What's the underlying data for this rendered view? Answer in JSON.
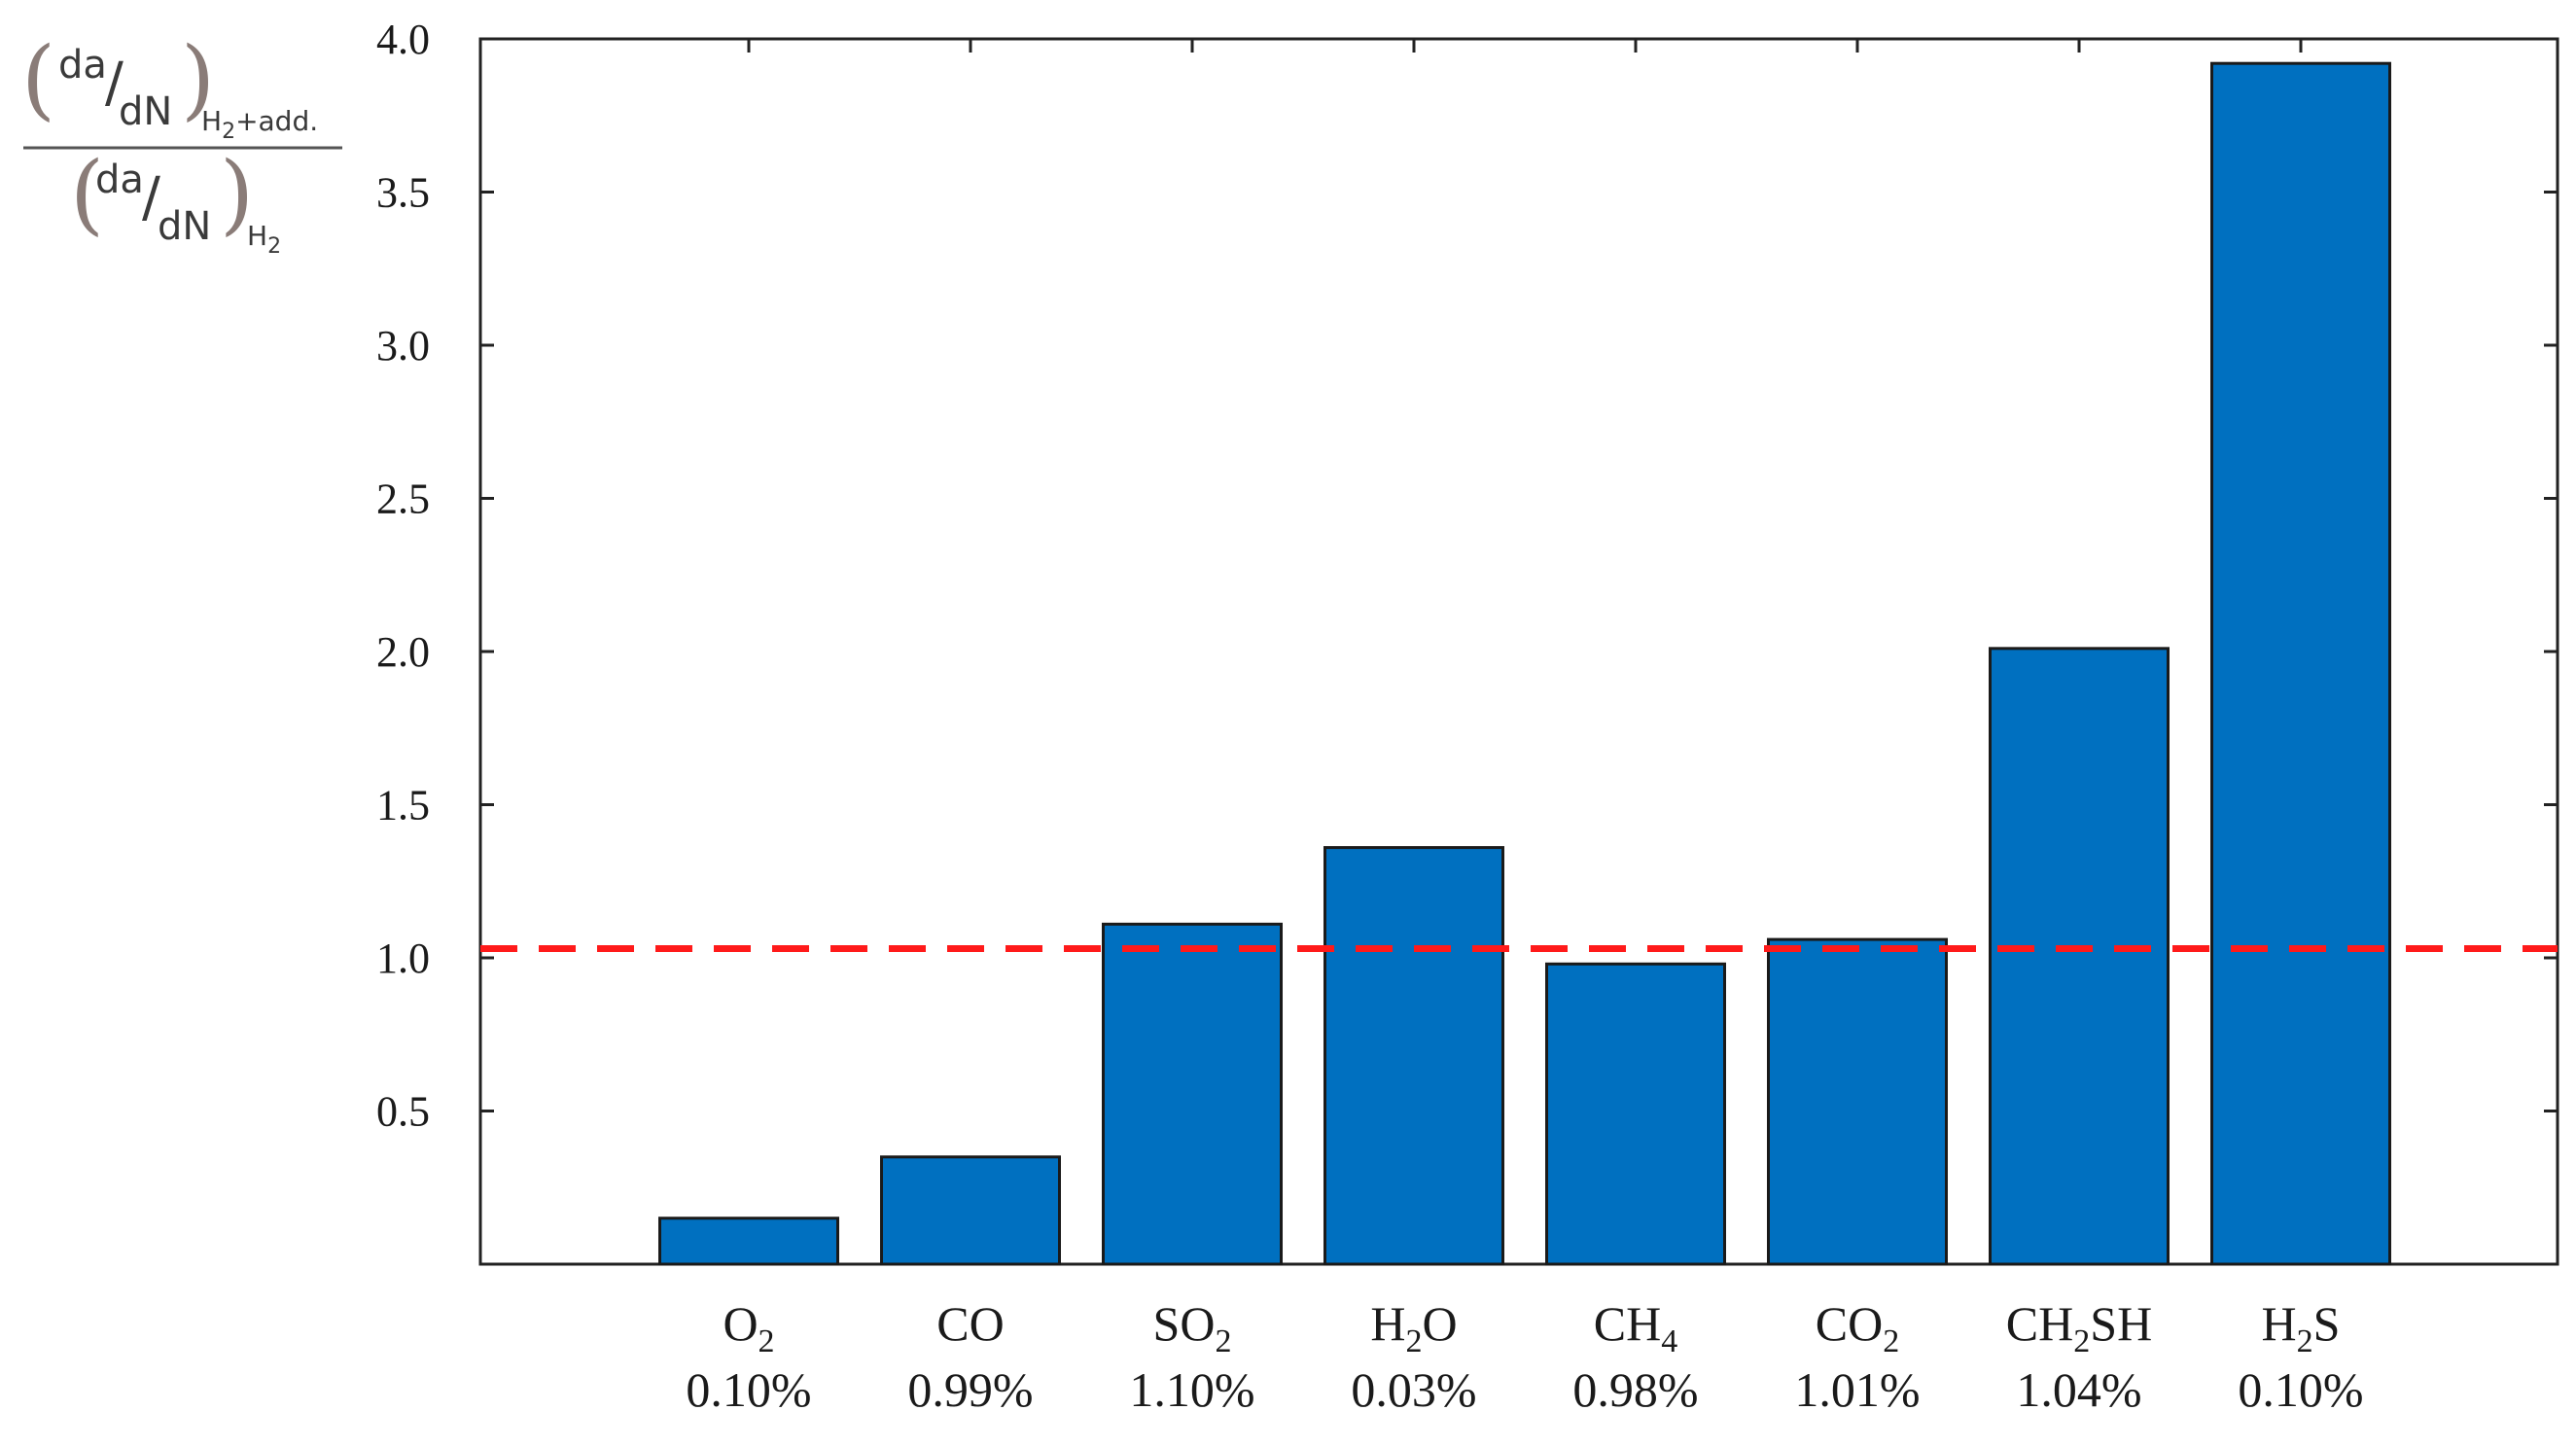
{
  "chart_data": {
    "type": "bar",
    "categories": [
      {
        "species": "O",
        "sub": "2",
        "rest": "",
        "concentration": "0.10%"
      },
      {
        "species": "CO",
        "sub": "",
        "rest": "",
        "concentration": "0.99%"
      },
      {
        "species": "SO",
        "sub": "2",
        "rest": "",
        "concentration": "1.10%"
      },
      {
        "species": "H",
        "sub": "2",
        "rest": "O",
        "concentration": "0.03%"
      },
      {
        "species": "CH",
        "sub": "4",
        "rest": "",
        "concentration": "0.98%"
      },
      {
        "species": "CO",
        "sub": "2",
        "rest": "",
        "concentration": "1.01%"
      },
      {
        "species": "CH",
        "sub": "2",
        "rest": "SH",
        "concentration": "1.04%"
      },
      {
        "species": "H",
        "sub": "2",
        "rest": "S",
        "concentration": "0.10%"
      }
    ],
    "values": [
      0.15,
      0.35,
      1.11,
      1.36,
      0.98,
      1.06,
      2.01,
      3.92
    ],
    "reference_line": {
      "value": 1.03,
      "style": "dashed",
      "color": "#ff1a1a"
    },
    "ylim": [
      0,
      4.0
    ],
    "yticks": [
      {
        "value": 0.5,
        "label": "0.5"
      },
      {
        "value": 1.0,
        "label": "1.0"
      },
      {
        "value": 1.5,
        "label": "1.5"
      },
      {
        "value": 2.0,
        "label": "2.0"
      },
      {
        "value": 2.5,
        "label": "2.5"
      },
      {
        "value": 3.0,
        "label": "3.0"
      },
      {
        "value": 3.5,
        "label": "3.5"
      },
      {
        "value": 4.0,
        "label": "4.0"
      }
    ],
    "ylabel": {
      "numerator": {
        "top": "da",
        "bottom": "dN",
        "subscript": "H",
        "subscript_index": "2",
        "subscript_rest": "+add."
      },
      "denominator": {
        "top": "da",
        "bottom": "dN",
        "subscript": "H",
        "subscript_index": "2"
      }
    },
    "bar_color": "#0070c0",
    "grid": false
  }
}
